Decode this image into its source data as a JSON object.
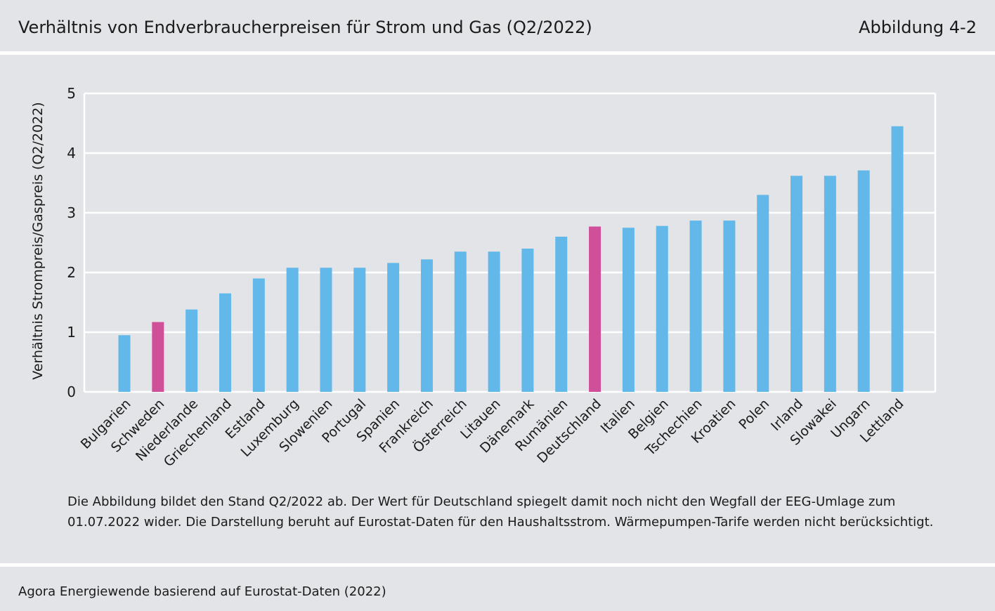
{
  "header": {
    "title": "Verhältnis von Endverbraucherpreisen für Strom und Gas (Q2/2022)",
    "figure_label": "Abbildung 4-2"
  },
  "note": {
    "line1": "Die Abbildung bildet den Stand Q2/2022 ab. Der Wert für Deutschland spiegelt damit noch nicht den Wegfall der EEG-Umlage zum",
    "line2": "01.07.2022 wider. Die Darstellung beruht auf Eurostat-Daten für den Haushaltsstrom. Wärmepumpen-Tarife werden nicht berücksichtigt."
  },
  "source": "Agora Energiewende basierend auf Eurostat-Daten (2022)",
  "colors": {
    "bar_default": "#63b8ea",
    "bar_highlight": "#d04f99",
    "plot_background": "#e3e4e8",
    "gridline": "#ffffff"
  },
  "chart_data": {
    "type": "bar",
    "title": "",
    "xlabel": "",
    "ylabel": "Verhältnis Strompreis/Gaspreis (Q2/2022)",
    "ylim": [
      0,
      5
    ],
    "yticks": [
      0,
      1,
      2,
      3,
      4,
      5
    ],
    "grid": true,
    "categories": [
      "Bulgarien",
      "Schweden",
      "Niederlande",
      "Griechenland",
      "Estland",
      "Luxemburg",
      "Slowenien",
      "Portugal",
      "Spanien",
      "Frankreich",
      "Österreich",
      "Litauen",
      "Dänemark",
      "Rumänien",
      "Deutschland",
      "Italien",
      "Belgien",
      "Tschechien",
      "Kroatien",
      "Polen",
      "Irland",
      "Slowakei",
      "Ungarn",
      "Lettland"
    ],
    "values": [
      0.95,
      1.17,
      1.38,
      1.65,
      1.9,
      2.08,
      2.08,
      2.08,
      2.16,
      2.22,
      2.35,
      2.35,
      2.4,
      2.6,
      2.77,
      2.75,
      2.78,
      2.87,
      2.87,
      3.3,
      3.62,
      3.62,
      3.71,
      4.45
    ],
    "highlighted": [
      "Schweden",
      "Deutschland"
    ]
  }
}
